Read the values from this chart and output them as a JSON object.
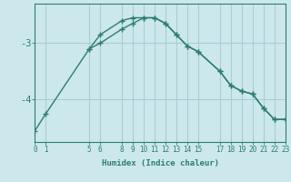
{
  "xlabel": "Humidex (Indice chaleur)",
  "bg_color": "#cce8ed",
  "line_color": "#2e7d6e",
  "grid_color": "#aacdd4",
  "line1_x": [
    0,
    1,
    5,
    6,
    8,
    9,
    10,
    11,
    12,
    13,
    14,
    15,
    17,
    18,
    19,
    20,
    21,
    22,
    23
  ],
  "line1_y": [
    -4.55,
    -4.25,
    -3.1,
    -2.85,
    -2.6,
    -2.55,
    -2.55,
    -2.55,
    -2.65,
    -2.85,
    -3.05,
    -3.15,
    -3.5,
    -3.75,
    -3.85,
    -3.9,
    -4.15,
    -4.35,
    -4.35
  ],
  "line2_x": [
    5,
    6,
    8,
    9,
    10,
    11,
    12,
    13,
    14,
    15,
    17,
    18,
    19,
    20,
    21,
    22,
    23
  ],
  "line2_y": [
    -3.1,
    -3.0,
    -2.75,
    -2.65,
    -2.55,
    -2.55,
    -2.65,
    -2.85,
    -3.05,
    -3.15,
    -3.5,
    -3.75,
    -3.85,
    -3.9,
    -4.15,
    -4.35,
    -4.35
  ],
  "xticks": [
    0,
    1,
    5,
    6,
    8,
    9,
    10,
    11,
    12,
    13,
    14,
    15,
    17,
    18,
    19,
    20,
    21,
    22,
    23
  ],
  "yticks": [
    -4.0,
    -3.0
  ],
  "xlim": [
    0,
    23
  ],
  "ylim": [
    -4.75,
    -2.3
  ]
}
